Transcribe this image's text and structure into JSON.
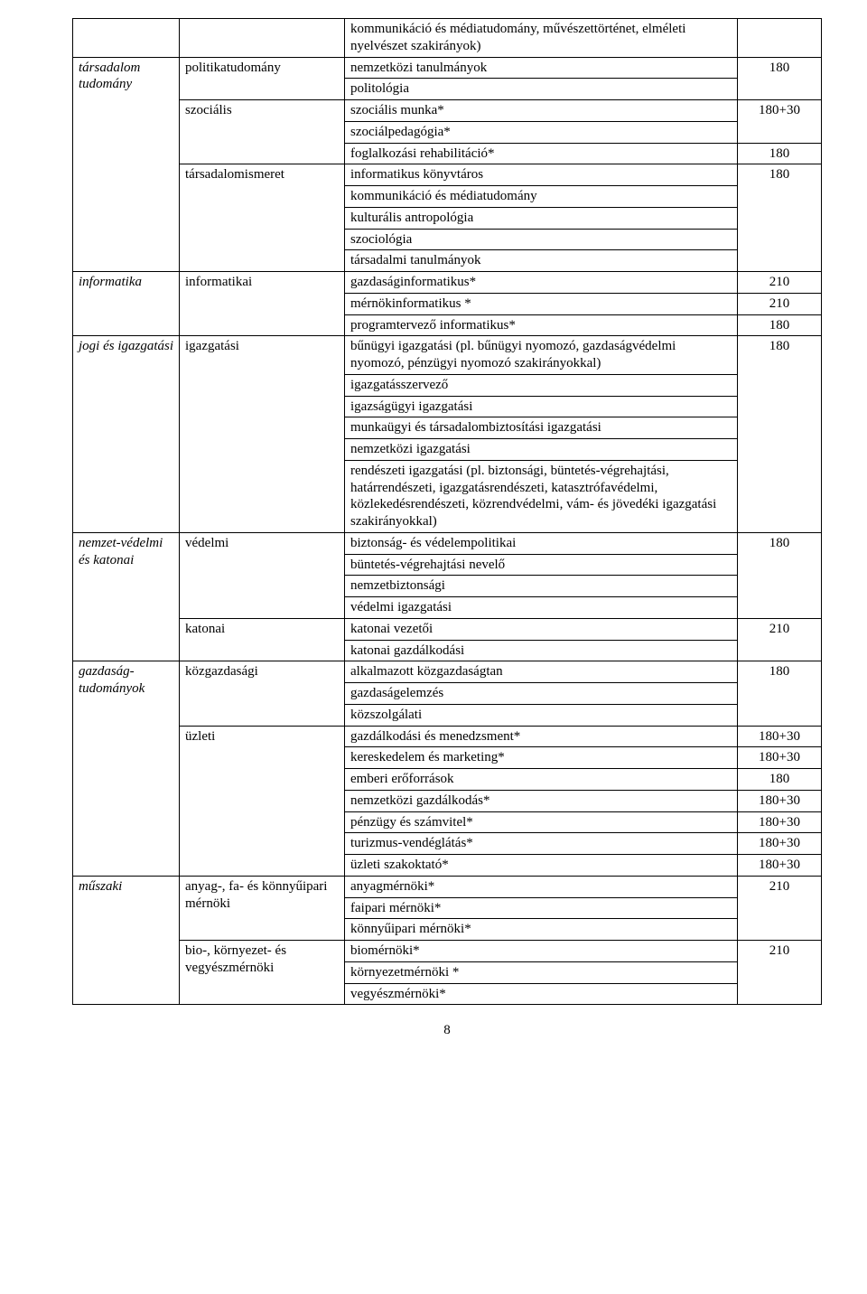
{
  "page_number": "8",
  "col_widths": {
    "c1": 105,
    "c2": 170,
    "c4": 80
  },
  "rows": [
    {
      "c1": "",
      "c2": "",
      "c3": "kommunikáció és médiatudomány, művészettörténet, elméleti nyelvészet szakirányok)",
      "c4": ""
    },
    {
      "c1": "társadalom tudomány",
      "c2": "politikatudomány",
      "c3": "nemzetközi tanulmányok",
      "c4": "180"
    },
    {
      "c1": "",
      "c2": "",
      "c3": "politológia",
      "c4": ""
    },
    {
      "c1": "",
      "c2": "szociális",
      "c3": "szociális munka*",
      "c4": "180+30"
    },
    {
      "c1": "",
      "c2": "",
      "c3": "szociálpedagógia*",
      "c4": ""
    },
    {
      "c1": "",
      "c2": "",
      "c3": "foglalkozási rehabilitáció*",
      "c4": "180"
    },
    {
      "c1": "",
      "c2": "társadalomismeret",
      "c3": "informatikus könyvtáros",
      "c4": "180"
    },
    {
      "c1": "",
      "c2": "",
      "c3": "kommunikáció és médiatudomány",
      "c4": ""
    },
    {
      "c1": "",
      "c2": "",
      "c3": "kulturális antropológia",
      "c4": ""
    },
    {
      "c1": "",
      "c2": "",
      "c3": "szociológia",
      "c4": ""
    },
    {
      "c1": "",
      "c2": "",
      "c3": "társadalmi tanulmányok",
      "c4": ""
    },
    {
      "c1": "informatika",
      "c2": "informatikai",
      "c3": "gazdaságinformatikus*",
      "c4": "210"
    },
    {
      "c1": "",
      "c2": "",
      "c3": "mérnökinformatikus *",
      "c4": "210"
    },
    {
      "c1": "",
      "c2": "",
      "c3": "programtervező informatikus*",
      "c4": "180"
    },
    {
      "c1": "jogi és igazgatási",
      "c2": "igazgatási",
      "c3": "bűnügyi igazgatási (pl. bűnügyi nyomozó, gazdaságvédelmi nyomozó, pénzügyi nyomozó szakirányokkal)",
      "c4": "180"
    },
    {
      "c1": "",
      "c2": "",
      "c3": "igazgatásszervező",
      "c4": ""
    },
    {
      "c1": "",
      "c2": "",
      "c3": "igazságügyi igazgatási",
      "c4": ""
    },
    {
      "c1": "",
      "c2": "",
      "c3": "munkaügyi és társadalombiztosítási igazgatási",
      "c4": ""
    },
    {
      "c1": "",
      "c2": "",
      "c3": "nemzetközi igazgatási",
      "c4": ""
    },
    {
      "c1": "",
      "c2": "",
      "c3": "rendészeti igazgatási (pl. biztonsági, büntetés-végrehajtási, határrendészeti, igazgatásrendészeti, katasztrófavédelmi, közlekedésrendészeti, közrendvédelmi, vám- és jövedéki igazgatási szakirányokkal)",
      "c4": ""
    },
    {
      "c1": "nemzet-védelmi és katonai",
      "c2": "védelmi",
      "c3": "biztonság- és védelempolitikai",
      "c4": "180"
    },
    {
      "c1": "",
      "c2": "",
      "c3": "büntetés-végrehajtási nevelő",
      "c4": ""
    },
    {
      "c1": "",
      "c2": "",
      "c3": "nemzetbiztonsági",
      "c4": ""
    },
    {
      "c1": "",
      "c2": "",
      "c3": "védelmi igazgatási",
      "c4": ""
    },
    {
      "c1": "",
      "c2": "katonai",
      "c3": "katonai vezetői",
      "c4": "210"
    },
    {
      "c1": "",
      "c2": "",
      "c3": "katonai gazdálkodási",
      "c4": ""
    },
    {
      "c1": "gazdaság-tudományok",
      "c2": "közgazdasági",
      "c3": "alkalmazott közgazdaságtan",
      "c4": "180"
    },
    {
      "c1": "",
      "c2": "",
      "c3": "gazdaságelemzés",
      "c4": ""
    },
    {
      "c1": "",
      "c2": "",
      "c3": "közszolgálati",
      "c4": ""
    },
    {
      "c1": "",
      "c2": "üzleti",
      "c3": "gazdálkodási és menedzsment*",
      "c4": "180+30"
    },
    {
      "c1": "",
      "c2": "",
      "c3": "kereskedelem és marketing*",
      "c4": "180+30"
    },
    {
      "c1": "",
      "c2": "",
      "c3": "emberi erőforrások",
      "c4": "180"
    },
    {
      "c1": "",
      "c2": "",
      "c3": "nemzetközi gazdálkodás*",
      "c4": "180+30"
    },
    {
      "c1": "",
      "c2": "",
      "c3": "pénzügy és számvitel*",
      "c4": "180+30"
    },
    {
      "c1": "",
      "c2": "",
      "c3": "turizmus-vendéglátás*",
      "c4": "180+30"
    },
    {
      "c1": "",
      "c2": "",
      "c3": "üzleti szakoktató*",
      "c4": "180+30"
    },
    {
      "c1": "műszaki",
      "c2": "anyag-, fa- és könnyűipari mérnöki",
      "c3": "anyagmérnöki*",
      "c4": "210"
    },
    {
      "c1": "",
      "c2": "",
      "c3": "faipari mérnöki*",
      "c4": ""
    },
    {
      "c1": "",
      "c2": "",
      "c3": "könnyűipari mérnöki*",
      "c4": ""
    },
    {
      "c1": "",
      "c2": "bio-, környezet- és vegyészmérnöki",
      "c3": "biomérnöki*",
      "c4": "210"
    },
    {
      "c1": "",
      "c2": "",
      "c3": "környezetmérnöki *",
      "c4": ""
    },
    {
      "c1": "",
      "c2": "",
      "c3": "vegyészmérnöki*",
      "c4": ""
    }
  ],
  "spans": {
    "c1_groups": [
      [
        0,
        0
      ],
      [
        1,
        10
      ],
      [
        11,
        13
      ],
      [
        14,
        19
      ],
      [
        20,
        25
      ],
      [
        26,
        35
      ],
      [
        36,
        41
      ]
    ],
    "c2_groups": [
      [
        0,
        0
      ],
      [
        1,
        2
      ],
      [
        3,
        5
      ],
      [
        6,
        10
      ],
      [
        11,
        13
      ],
      [
        14,
        19
      ],
      [
        20,
        23
      ],
      [
        24,
        25
      ],
      [
        26,
        28
      ],
      [
        29,
        35
      ],
      [
        36,
        38
      ],
      [
        39,
        41
      ]
    ],
    "c4_groups": [
      [
        0,
        0
      ],
      [
        1,
        2
      ],
      [
        3,
        4
      ],
      [
        5,
        5
      ],
      [
        6,
        10
      ],
      [
        11,
        11
      ],
      [
        12,
        12
      ],
      [
        13,
        13
      ],
      [
        14,
        19
      ],
      [
        20,
        23
      ],
      [
        24,
        25
      ],
      [
        26,
        28
      ],
      [
        29,
        29
      ],
      [
        30,
        30
      ],
      [
        31,
        31
      ],
      [
        32,
        32
      ],
      [
        33,
        33
      ],
      [
        34,
        34
      ],
      [
        35,
        35
      ],
      [
        36,
        38
      ],
      [
        39,
        41
      ]
    ]
  },
  "open_top": {
    "c1": true,
    "c2": true,
    "c4": true
  },
  "open_bottom": {
    "c1": true,
    "c2": true,
    "c4": true
  }
}
